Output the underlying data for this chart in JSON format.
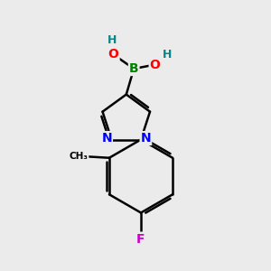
{
  "bg_color": "#ebebeb",
  "bond_color": "#000000",
  "atom_colors": {
    "B": "#008000",
    "O": "#ff0000",
    "N": "#0000ff",
    "F": "#cc00cc",
    "H": "#008888",
    "C": "#000000"
  },
  "title": ""
}
